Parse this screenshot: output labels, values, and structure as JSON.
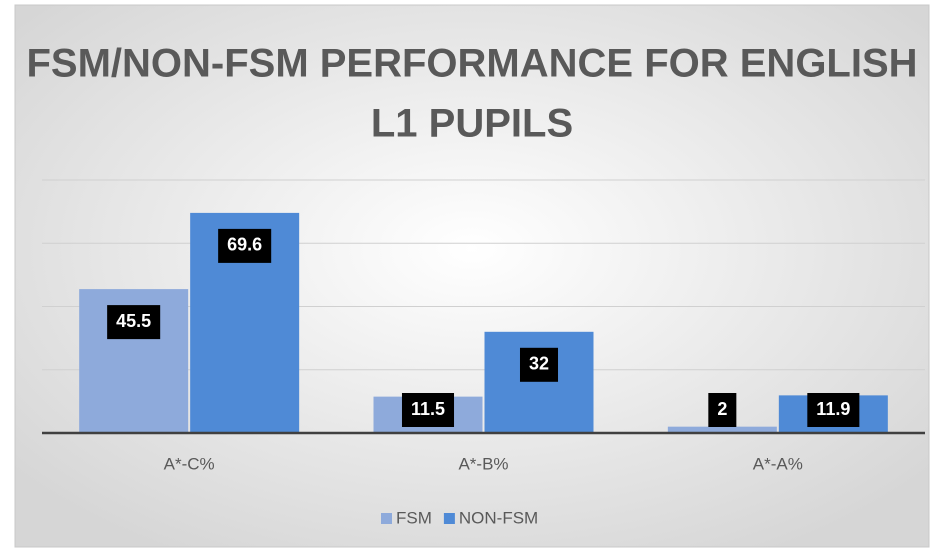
{
  "chart_data": {
    "type": "bar",
    "title": "FSM/NON-FSM PERFORMANCE FOR ENGLISH L1 PUPILS",
    "categories": [
      "A*-C%",
      "A*-B%",
      "A*-A%"
    ],
    "series": [
      {
        "name": "FSM",
        "color": "#8eaadb",
        "values": [
          45.5,
          11.5,
          2
        ]
      },
      {
        "name": "NON-FSM",
        "color": "#4f8ad6",
        "values": [
          69.6,
          32,
          11.9
        ]
      }
    ],
    "ylim": [
      0,
      80
    ],
    "yticks": [
      0,
      20,
      40,
      60,
      80
    ],
    "grid": true,
    "legend": "bottom"
  }
}
